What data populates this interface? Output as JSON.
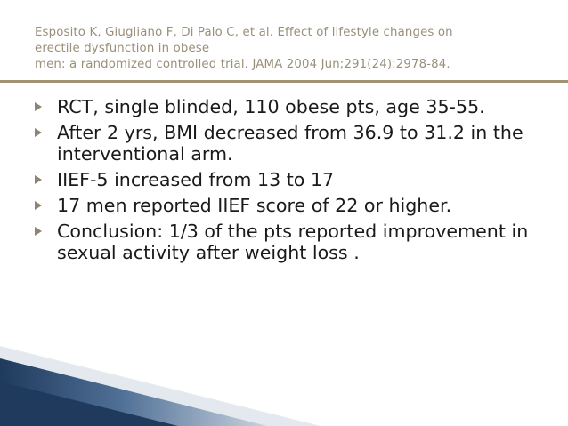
{
  "slide": {
    "title_lines": [
      "Esposito K, Giugliano F, Di Palo C, et al. Effect of lifestyle changes on",
      "erectile dysfunction in obese",
      "men: a randomized controlled trial. JAMA 2004 Jun;291(24):2978-84."
    ],
    "bullets": [
      "RCT, single blinded, 110 obese pts, age 35-55.",
      "After 2 yrs, BMI decreased from 36.9 to 31.2 in the interventional arm.",
      "IIEF-5 increased from 13 to 17",
      "17 men reported IIEF score of 22 or higher.",
      "Conclusion: 1/3 of the pts reported improvement in sexual activity after weight loss ."
    ]
  },
  "colors": {
    "title": "#9a8f78",
    "rule": "#a09373",
    "body_text": "#1a1a1a",
    "bullet_marker": "#8e8472",
    "corner_dark": "#1f3a5c",
    "corner_mid": "#4f6f96",
    "corner_light": "#c9d3de"
  },
  "icons": {
    "bullet": "right-triangle-bullet-icon"
  }
}
